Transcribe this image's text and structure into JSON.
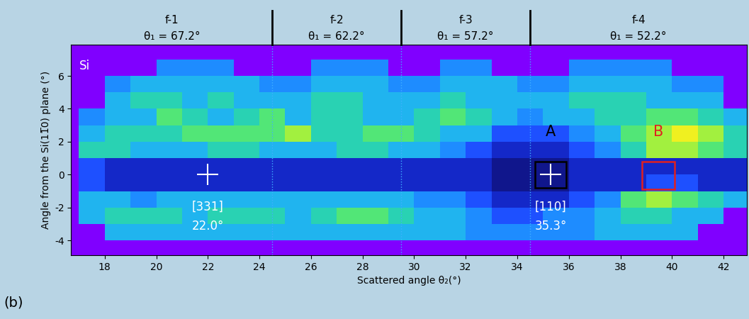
{
  "chart_data": {
    "type": "heatmap",
    "xlabel": "Scattered angle θ₂(°)",
    "ylabel": "Angle from the Si(11̅0) plane (°)",
    "xlim": [
      16.7,
      42.9
    ],
    "ylim": [
      -4.9,
      7.9
    ],
    "xticks": [
      18,
      20,
      22,
      24,
      26,
      28,
      30,
      32,
      34,
      36,
      38,
      40,
      42
    ],
    "yticks": [
      -4,
      -2,
      0,
      2,
      4,
      6
    ],
    "x": [
      17.5,
      18.5,
      19.5,
      20.5,
      21.5,
      22.5,
      23.5,
      24.5,
      25.5,
      26.5,
      27.5,
      28.5,
      29.5,
      30.5,
      31.5,
      32.5,
      33.5,
      34.5,
      35.5,
      36.5,
      37.5,
      38.5,
      39.5,
      40.5,
      41.5,
      42.5
    ],
    "y": [
      -3.5,
      -2.5,
      -1.5,
      -0.5,
      0.5,
      1.5,
      2.5,
      3.5,
      4.5,
      5.5,
      6.5
    ],
    "cells": [
      [
        null,
        4,
        4,
        4,
        4,
        4,
        4,
        4,
        4,
        4,
        4,
        4,
        4,
        4,
        4,
        3,
        3,
        3,
        3,
        3,
        4,
        4,
        4,
        4,
        null,
        null
      ],
      [
        4,
        5,
        5,
        5,
        4,
        5,
        5,
        5,
        4,
        5,
        6,
        6,
        5,
        4,
        4,
        3,
        2,
        2,
        3,
        3,
        4,
        5,
        5,
        4,
        4,
        null
      ],
      [
        4,
        4,
        3,
        4,
        4,
        4,
        4,
        4,
        4,
        4,
        4,
        4,
        4,
        3,
        3,
        2,
        1,
        1,
        1,
        2,
        3,
        6,
        7,
        6,
        5,
        4
      ],
      [
        2,
        1,
        1,
        1,
        1,
        1,
        1,
        1,
        1,
        1,
        1,
        1,
        1,
        1,
        1,
        1,
        0,
        0,
        0,
        1,
        1,
        1,
        2,
        2,
        1,
        1
      ],
      [
        2,
        1,
        1,
        1,
        1,
        1,
        1,
        1,
        1,
        1,
        1,
        1,
        1,
        1,
        1,
        1,
        0,
        0,
        0,
        1,
        1,
        1,
        1,
        1,
        1,
        1
      ],
      [
        5,
        5,
        4,
        4,
        4,
        5,
        5,
        4,
        4,
        4,
        5,
        5,
        4,
        4,
        3,
        2,
        1,
        1,
        1,
        2,
        3,
        5,
        7,
        7,
        6,
        5
      ],
      [
        4,
        5,
        5,
        5,
        6,
        6,
        6,
        6,
        7,
        5,
        5,
        6,
        6,
        5,
        4,
        4,
        2,
        2,
        2,
        3,
        4,
        6,
        7,
        8,
        7,
        5
      ],
      [
        3,
        4,
        4,
        6,
        5,
        4,
        5,
        6,
        4,
        5,
        5,
        4,
        4,
        5,
        6,
        5,
        4,
        3,
        4,
        4,
        5,
        5,
        6,
        6,
        5,
        4
      ],
      [
        null,
        4,
        5,
        5,
        4,
        5,
        4,
        4,
        4,
        5,
        5,
        4,
        4,
        4,
        5,
        4,
        4,
        4,
        4,
        5,
        5,
        5,
        4,
        4,
        4,
        null
      ],
      [
        null,
        3,
        4,
        4,
        4,
        4,
        4,
        3,
        3,
        4,
        4,
        4,
        3,
        3,
        4,
        4,
        4,
        3,
        3,
        4,
        4,
        4,
        4,
        3,
        3,
        null
      ],
      [
        null,
        null,
        null,
        3,
        3,
        3,
        null,
        null,
        null,
        3,
        3,
        3,
        null,
        null,
        3,
        3,
        null,
        null,
        null,
        3,
        3,
        3,
        3,
        null,
        null,
        null
      ]
    ],
    "frames": [
      {
        "label": "f-1",
        "angle": "θ₁ = 67.2°"
      },
      {
        "label": "f-2",
        "angle": "θ₁ = 62.2°"
      },
      {
        "label": "f-3",
        "angle": "θ₁ = 57.2°"
      },
      {
        "label": "f-4",
        "angle": "θ₁ = 52.2°"
      }
    ],
    "frame_boundaries": [
      24.5,
      29.5,
      34.5
    ],
    "material": "Si",
    "panel_label": "(b)",
    "directions": [
      {
        "label": "[331]",
        "angle_label": "22.0°",
        "x": 22.0,
        "y": 0
      },
      {
        "label": "[110]",
        "angle_label": "35.3°",
        "x": 35.3,
        "y": 0
      }
    ],
    "regions": [
      {
        "label": "A",
        "color": "#000000",
        "xrange": [
          34.7,
          35.9
        ],
        "yrange": [
          -0.8,
          0.8
        ]
      },
      {
        "label": "B",
        "color": "#e02020",
        "xrange": [
          38.85,
          40.1
        ],
        "yrange": [
          -0.9,
          0.8
        ]
      }
    ]
  }
}
